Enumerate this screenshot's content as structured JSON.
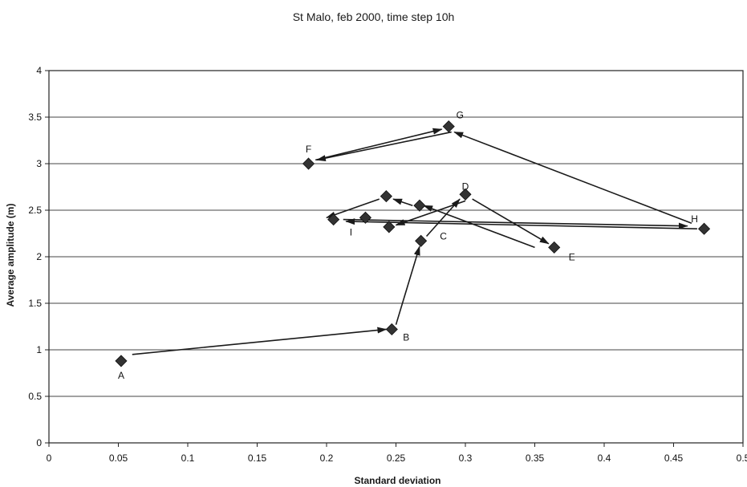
{
  "chart_data": {
    "type": "scatter",
    "title": "St Malo, feb 2000, time step 10h",
    "xlabel": "Standard deviation",
    "ylabel": "Average amplitude (m)",
    "xlim": [
      0,
      0.5
    ],
    "ylim": [
      0,
      4
    ],
    "xticks": [
      "0",
      "0.05",
      "0.1",
      "0.15",
      "0.2",
      "0.25",
      "0.3",
      "0.35",
      "0.4",
      "0.45",
      "0.5"
    ],
    "yticks": [
      "0",
      "0.5",
      "1",
      "1.5",
      "2",
      "2.5",
      "3",
      "3.5",
      "4"
    ],
    "grid": "horizontal",
    "colors": {
      "marker": "#333333",
      "line": "#1a1a1a",
      "grid": "#444444"
    },
    "points": [
      {
        "x": 0.052,
        "y": 0.88,
        "label": "A"
      },
      {
        "x": 0.247,
        "y": 1.22,
        "label": "B"
      },
      {
        "x": 0.268,
        "y": 2.17,
        "label": "C"
      },
      {
        "x": 0.3,
        "y": 2.67,
        "label": "D"
      },
      {
        "x": 0.364,
        "y": 2.1,
        "label": "E"
      },
      {
        "x": 0.187,
        "y": 3.0,
        "label": "F"
      },
      {
        "x": 0.288,
        "y": 3.4,
        "label": "G"
      },
      {
        "x": 0.472,
        "y": 2.3,
        "label": "H"
      },
      {
        "x": 0.228,
        "y": 2.42,
        "label": "I"
      },
      {
        "x": 0.243,
        "y": 2.65,
        "label": ""
      },
      {
        "x": 0.267,
        "y": 2.55,
        "label": ""
      },
      {
        "x": 0.245,
        "y": 2.32,
        "label": ""
      },
      {
        "x": 0.205,
        "y": 2.4,
        "label": ""
      }
    ],
    "arrows": [
      {
        "from": [
          0.06,
          0.95
        ],
        "to": [
          0.243,
          1.22
        ]
      },
      {
        "from": [
          0.25,
          1.27
        ],
        "to": [
          0.267,
          2.11
        ]
      },
      {
        "from": [
          0.272,
          2.22
        ],
        "to": [
          0.296,
          2.62
        ]
      },
      {
        "from": [
          0.305,
          2.62
        ],
        "to": [
          0.36,
          2.14
        ]
      },
      {
        "from": [
          0.35,
          2.1
        ],
        "to": [
          0.27,
          2.55
        ]
      },
      {
        "from": [
          0.262,
          2.55
        ],
        "to": [
          0.248,
          2.62
        ]
      },
      {
        "from": [
          0.238,
          2.62
        ],
        "to": [
          0.2,
          2.42
        ]
      },
      {
        "from": [
          0.212,
          2.4
        ],
        "to": [
          0.46,
          2.33
        ]
      },
      {
        "from": [
          0.463,
          2.36
        ],
        "to": [
          0.292,
          3.34
        ]
      },
      {
        "from": [
          0.29,
          3.34
        ],
        "to": [
          0.193,
          3.04
        ]
      },
      {
        "from": [
          0.192,
          3.04
        ],
        "to": [
          0.283,
          3.37
        ]
      },
      {
        "from": [
          0.467,
          2.3
        ],
        "to": [
          0.214,
          2.38
        ]
      },
      {
        "from": [
          0.3,
          2.6
        ],
        "to": [
          0.25,
          2.34
        ]
      }
    ]
  }
}
